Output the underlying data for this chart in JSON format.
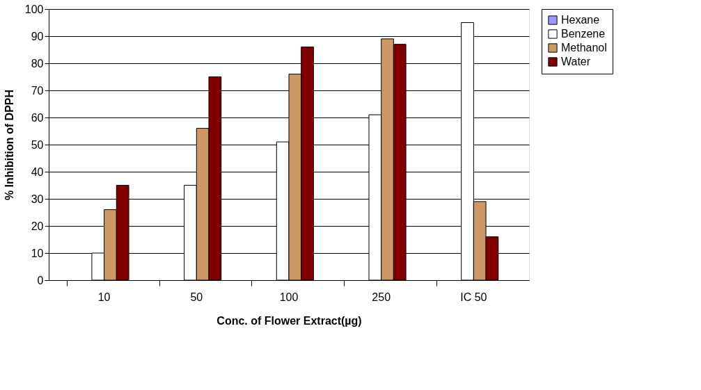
{
  "chart_data": {
    "type": "bar",
    "xlabel": "Conc. of Flower Extract(µg)",
    "ylabel": "% Inhibition of DPPH",
    "categories": [
      "10",
      "50",
      "100",
      "250",
      "IC 50"
    ],
    "series": [
      {
        "name": "Hexane",
        "color": "#9999ff",
        "values": [
          null,
          null,
          null,
          null,
          null
        ]
      },
      {
        "name": "Benzene",
        "color": "#ffffff",
        "values": [
          10,
          35,
          51,
          61,
          95
        ]
      },
      {
        "name": "Methanol",
        "color": "#cc9966",
        "values": [
          26,
          56,
          76,
          89,
          29
        ]
      },
      {
        "name": "Water",
        "color": "#800000",
        "values": [
          35,
          75,
          86,
          87,
          16
        ]
      }
    ],
    "ylim": [
      0,
      100
    ],
    "yticks": [
      0,
      10,
      20,
      30,
      40,
      50,
      60,
      70,
      80,
      90,
      100
    ],
    "grid": "y",
    "legend": "right"
  }
}
